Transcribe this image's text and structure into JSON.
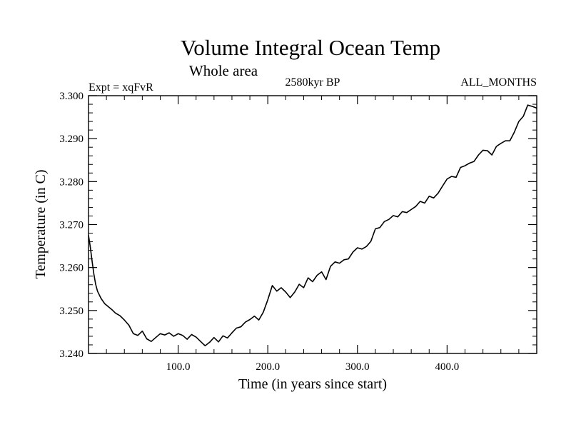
{
  "chart_data": {
    "type": "line",
    "title": "Volume Integral Ocean Temp",
    "subtitle": "Whole area",
    "left_label": "Expt = xqFvR",
    "center_label": "2580kyr BP",
    "right_label": "ALL_MONTHS",
    "xlabel": "Time (in years since start)",
    "ylabel": "Temperature (in C)",
    "xlim": [
      0,
      500
    ],
    "ylim": [
      3.24,
      3.3
    ],
    "x_major_ticks": [
      100,
      200,
      300,
      400
    ],
    "x_tick_labels": [
      "100.0",
      "200.0",
      "300.0",
      "400.0"
    ],
    "y_major_ticks": [
      3.24,
      3.25,
      3.26,
      3.27,
      3.28,
      3.29,
      3.3
    ],
    "y_tick_labels": [
      "3.240",
      "3.250",
      "3.260",
      "3.270",
      "3.280",
      "3.290",
      "3.300"
    ],
    "grid": false,
    "series": [
      {
        "name": "Volume integral ocean temperature",
        "color": "#000000",
        "x": [
          0,
          2,
          4,
          6,
          8,
          10,
          14,
          18,
          22,
          26,
          30,
          35,
          40,
          45,
          50,
          55,
          60,
          65,
          70,
          75,
          80,
          85,
          90,
          95,
          100,
          105,
          110,
          115,
          120,
          125,
          130,
          135,
          140,
          145,
          150,
          155,
          160,
          165,
          170,
          175,
          180,
          185,
          190,
          195,
          200,
          205,
          210,
          215,
          220,
          225,
          230,
          235,
          240,
          245,
          250,
          255,
          260,
          265,
          270,
          275,
          280,
          285,
          290,
          295,
          300,
          305,
          310,
          315,
          320,
          325,
          330,
          335,
          340,
          345,
          350,
          355,
          360,
          365,
          370,
          375,
          380,
          385,
          390,
          395,
          400,
          405,
          410,
          415,
          420,
          425,
          430,
          435,
          440,
          445,
          450,
          455,
          460,
          465,
          470,
          475,
          480,
          485,
          490,
          495,
          500
        ],
        "values": [
          3.2675,
          3.2648,
          3.2615,
          3.2585,
          3.2561,
          3.2545,
          3.2528,
          3.2516,
          3.2509,
          3.2502,
          3.2494,
          3.2488,
          3.2478,
          3.2466,
          3.2446,
          3.2442,
          3.2452,
          3.2434,
          3.2428,
          3.2437,
          3.2446,
          3.2443,
          3.2448,
          3.244,
          3.2446,
          3.2442,
          3.2433,
          3.2444,
          3.2438,
          3.2428,
          3.2418,
          3.2426,
          3.2437,
          3.2427,
          3.2441,
          3.2436,
          3.2448,
          3.2459,
          3.2462,
          3.2473,
          3.2479,
          3.2487,
          3.2478,
          3.2496,
          3.2525,
          3.2558,
          3.2545,
          3.2553,
          3.2543,
          3.253,
          3.2543,
          3.2561,
          3.2553,
          3.2576,
          3.2567,
          3.2582,
          3.259,
          3.2572,
          3.2603,
          3.2613,
          3.261,
          3.2618,
          3.262,
          3.2636,
          3.2646,
          3.2643,
          3.2649,
          3.2661,
          3.269,
          3.2693,
          3.2707,
          3.2712,
          3.2721,
          3.2718,
          3.273,
          3.2728,
          3.2735,
          3.2742,
          3.2754,
          3.275,
          3.2766,
          3.2762,
          3.2773,
          3.279,
          3.2806,
          3.2812,
          3.281,
          3.2833,
          3.2837,
          3.2843,
          3.2847,
          3.2862,
          3.2873,
          3.2872,
          3.2862,
          3.2882,
          3.2889,
          3.2895,
          3.2895,
          3.2915,
          3.294,
          3.2952,
          3.2978,
          3.2975,
          3.2971
        ]
      }
    ]
  }
}
